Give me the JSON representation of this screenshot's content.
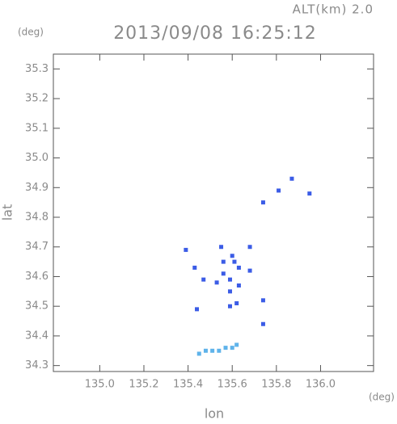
{
  "chart_data": {
    "type": "scatter",
    "title": "2013/09/08 16:25:12",
    "annotation": "ALT(km) 2.0",
    "x_label": "lon",
    "y_label": "lat",
    "x_unit": "(deg)",
    "y_unit": "(deg)",
    "xlim": [
      134.79,
      136.24
    ],
    "ylim": [
      34.28,
      35.35
    ],
    "xticks": [
      {
        "value": 135,
        "label": "135.0"
      },
      135.2,
      135.4,
      135.6,
      135.8,
      {
        "value": 136,
        "label": "136.0"
      }
    ],
    "yticks": [
      34.3,
      34.4,
      34.5,
      34.6,
      34.7,
      34.8,
      34.9,
      {
        "value": 35,
        "label": "35.0"
      },
      35.1,
      35.2,
      35.3
    ],
    "series": [
      {
        "color": "#3b5ce6",
        "x": [
          135.87,
          135.81,
          135.74,
          135.95,
          135.39,
          135.43,
          135.55,
          135.6,
          135.56,
          135.61,
          135.68,
          135.63,
          135.56,
          135.68,
          135.47,
          135.59,
          135.63,
          135.53,
          135.59,
          135.62,
          135.59,
          135.44,
          135.74,
          135.74
        ],
        "values": [
          34.93,
          34.89,
          34.85,
          34.88,
          34.69,
          34.63,
          34.7,
          34.67,
          34.65,
          34.65,
          34.7,
          34.63,
          34.61,
          34.62,
          34.59,
          34.59,
          34.57,
          34.58,
          34.55,
          34.51,
          34.5,
          34.49,
          34.52,
          34.44
        ]
      },
      {
        "color": "#5fb3ea",
        "x": [
          135.45,
          135.48,
          135.51,
          135.54,
          135.57,
          135.6,
          135.62
        ],
        "values": [
          34.34,
          34.35,
          34.35,
          34.35,
          34.36,
          34.36,
          34.37
        ]
      }
    ]
  }
}
